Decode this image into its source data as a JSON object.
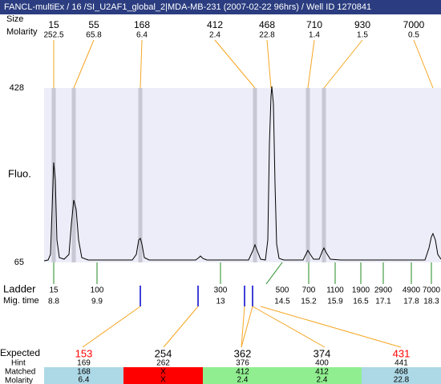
{
  "header": {
    "title": "FANCL-multiEx / 16 /SI_U2AF1_global_2|MDA-MB-231 (2007-02-22 96hrs) / Well ID 1270841"
  },
  "top_labels": {
    "size": "Size",
    "molarity": "Molarity"
  },
  "peaks": [
    {
      "size": 15,
      "molarity": 252.5
    },
    {
      "size": 55,
      "molarity": 65.8
    },
    {
      "size": 168,
      "molarity": 6.4
    },
    {
      "size": 412,
      "molarity": 2.4
    },
    {
      "size": 468,
      "molarity": 22.8
    },
    {
      "size": 710,
      "molarity": 1.4
    },
    {
      "size": 930,
      "molarity": 1.5
    },
    {
      "size": 7000,
      "molarity": 0.5
    }
  ],
  "y_axis": {
    "label": "Fluo.",
    "max": 428,
    "min": 65
  },
  "ladder": {
    "label": "Ladder",
    "time_label": "Mig. time",
    "items": [
      {
        "size": 15,
        "time": 8.8
      },
      {
        "size": 100,
        "time": 9.9
      },
      {
        "size": 300,
        "time": 13
      },
      {
        "size": 500,
        "time": 14.5
      },
      {
        "size": 700,
        "time": 15.2
      },
      {
        "size": 1100,
        "time": 15.9
      },
      {
        "size": 1900,
        "time": 16.5
      },
      {
        "size": 2900,
        "time": 17.1
      },
      {
        "size": 4900,
        "time": 17.8
      },
      {
        "size": 7000,
        "time": 18.3
      }
    ]
  },
  "expected": {
    "labels": [
      "Expected",
      "Hint",
      "Matched",
      "Molarity"
    ],
    "columns": [
      {
        "expected": 153,
        "hint": 169,
        "matched": 168,
        "molarity": 6.4,
        "color": "#ff0000",
        "cell_color": "#add8e6"
      },
      {
        "expected": 254,
        "hint": 262,
        "matched": "X",
        "molarity": "X",
        "color": "#000000",
        "cell_color": "#ff0000"
      },
      {
        "expected": 362,
        "hint": 376,
        "matched": 412,
        "molarity": 2.4,
        "color": "#000000",
        "cell_color": "#90ee90"
      },
      {
        "expected": 374,
        "hint": 400,
        "matched": 412,
        "molarity": 2.4,
        "color": "#000000",
        "cell_color": "#90ee90"
      },
      {
        "expected": 431,
        "hint": 441,
        "matched": 468,
        "molarity": 22.8,
        "color": "#ff0000",
        "cell_color": "#add8e6"
      }
    ]
  }
}
